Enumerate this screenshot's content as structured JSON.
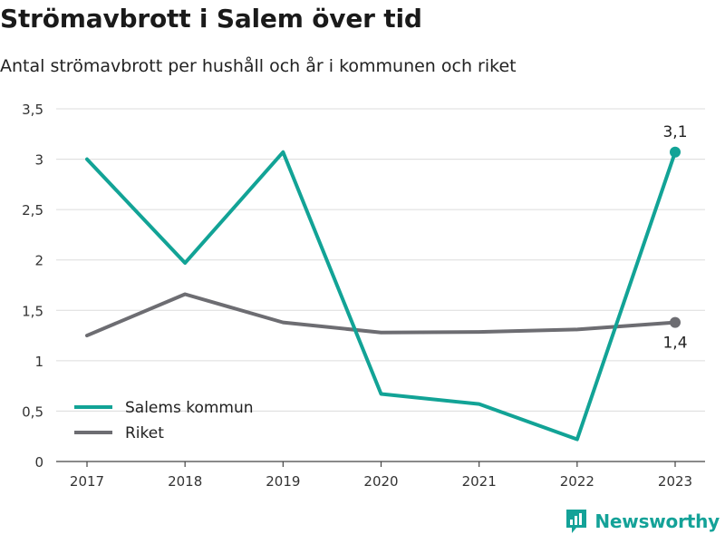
{
  "title": "Strömavbrott i Salem över tid",
  "subtitle": "Antal strömavbrott per hushåll och år i kommunen och riket",
  "brand": {
    "name": "Newsworthy",
    "icon": "newsworthy-logo-icon",
    "color": "#14a298"
  },
  "chart_data": {
    "type": "line",
    "title": "Strömavbrott i Salem över tid",
    "subtitle": "Antal strömavbrott per hushåll och år i kommunen och riket",
    "xlabel": "",
    "ylabel": "",
    "x": [
      "2017",
      "2018",
      "2019",
      "2020",
      "2021",
      "2022",
      "2023"
    ],
    "ylim": [
      0,
      3.5
    ],
    "yticks": [
      0,
      0.5,
      1,
      1.5,
      2,
      2.5,
      3,
      3.5
    ],
    "ytick_labels": [
      "0",
      "0,5",
      "1",
      "1,5",
      "2",
      "2,5",
      "3",
      "3,5"
    ],
    "grid": true,
    "legend_position": "bottom-left",
    "series": [
      {
        "name": "Salems kommun",
        "color": "#12a396",
        "values": [
          3.0,
          1.97,
          3.07,
          0.67,
          0.57,
          0.22,
          3.07
        ],
        "end_label": "3,1"
      },
      {
        "name": "Riket",
        "color": "#6d6d72",
        "values": [
          1.25,
          1.66,
          1.38,
          1.28,
          1.285,
          1.31,
          1.38
        ],
        "end_label": "1,4"
      }
    ]
  }
}
